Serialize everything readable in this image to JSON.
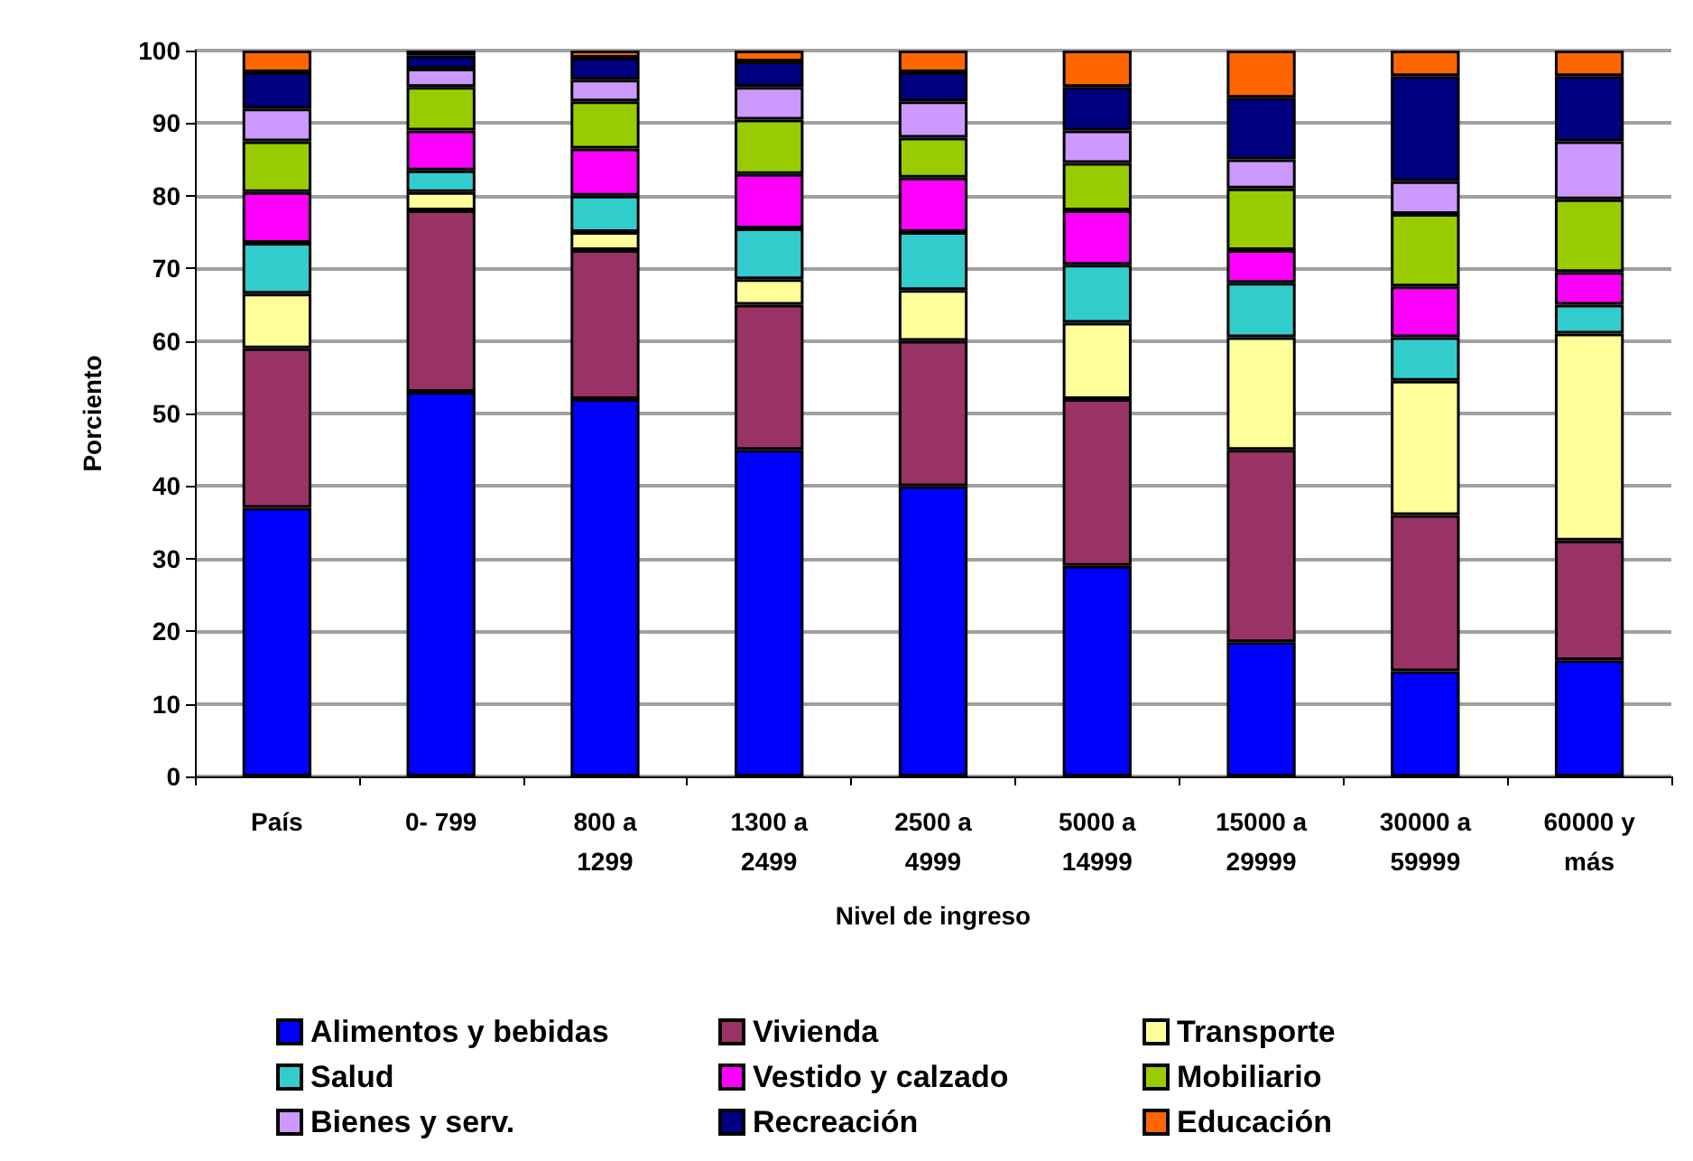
{
  "chart_data": {
    "type": "bar",
    "stacked": true,
    "xlabel": "Nivel de ingreso",
    "ylabel": "Porciento",
    "categories": [
      "País",
      "0- 799",
      "800 a\n1299",
      "1300 a\n2499",
      "2500 a\n4999",
      "5000 a\n14999",
      "15000 a\n29999",
      "30000 a\n59999",
      "60000 y\nmás"
    ],
    "ylim": [
      0,
      100
    ],
    "yticks": [
      0,
      10,
      20,
      30,
      40,
      50,
      60,
      70,
      80,
      90,
      100
    ],
    "grid": "y",
    "legend": "bottom",
    "series": [
      {
        "name": "Alimentos y bebidas",
        "color": "#0000ff",
        "values": [
          37,
          53,
          52,
          45,
          40,
          29,
          18.5,
          14.5,
          16
        ]
      },
      {
        "name": "Vivienda",
        "color": "#993366",
        "values": [
          22,
          25,
          20.5,
          20,
          20,
          23,
          26.5,
          21.5,
          16.5
        ]
      },
      {
        "name": "Transporte",
        "color": "#ffff99",
        "values": [
          7.5,
          2.5,
          2.5,
          3.5,
          7,
          10.5,
          15.5,
          18.5,
          28.5
        ]
      },
      {
        "name": "Salud",
        "color": "#33cccc",
        "values": [
          7,
          3,
          5,
          7,
          8,
          8,
          7.5,
          6,
          4
        ]
      },
      {
        "name": "Vestido y calzado",
        "color": "#ff00ff",
        "values": [
          7,
          5.5,
          6.5,
          7.5,
          7.5,
          7.5,
          4.5,
          7,
          4.5
        ]
      },
      {
        "name": "Mobiliario",
        "color": "#99cc00",
        "values": [
          7,
          6,
          6.5,
          7.5,
          5.5,
          6.5,
          8.5,
          10,
          10
        ]
      },
      {
        "name": "Bienes y serv.",
        "color": "#cc99ff",
        "values": [
          4.5,
          2.5,
          3,
          4.5,
          5,
          4.5,
          4,
          4.5,
          8
        ]
      },
      {
        "name": "Recreación",
        "color": "#000080",
        "values": [
          5,
          1.8,
          3,
          3.5,
          4,
          6,
          8.5,
          14.5,
          9
        ]
      },
      {
        "name": "Educación",
        "color": "#ff6600",
        "values": [
          3,
          0.7,
          1,
          1.5,
          3,
          5,
          6.5,
          3.5,
          3.5
        ]
      }
    ]
  }
}
